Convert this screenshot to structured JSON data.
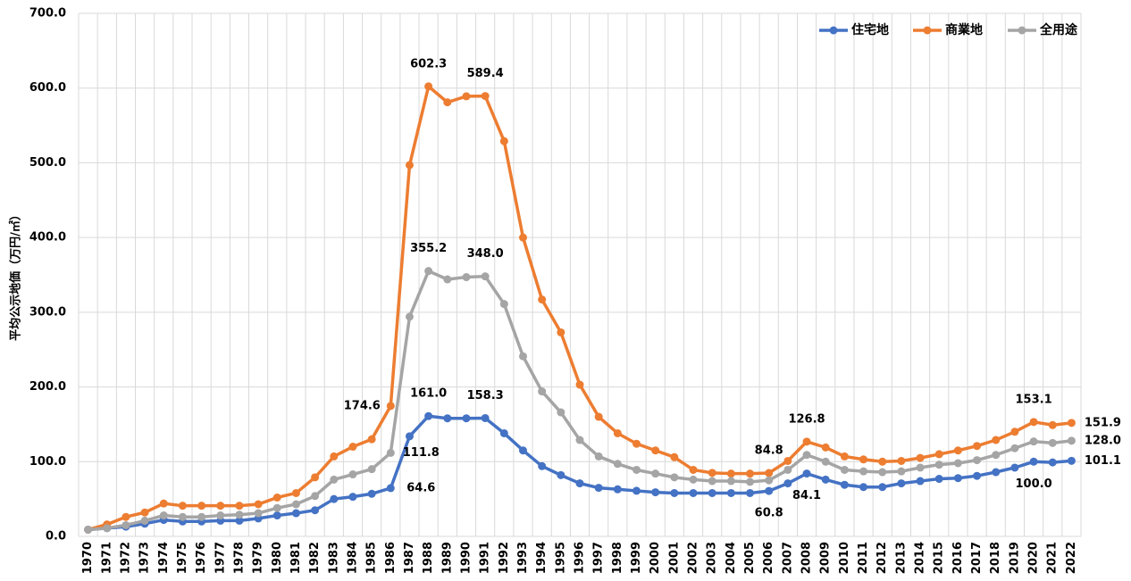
{
  "chart_data": {
    "type": "line",
    "y_label": "平均公示地価（万円/㎡）",
    "categories": [
      "1970",
      "1971",
      "1972",
      "1973",
      "1974",
      "1975",
      "1976",
      "1977",
      "1978",
      "1979",
      "1980",
      "1981",
      "1982",
      "1983",
      "1984",
      "1985",
      "1986",
      "1987",
      "1988",
      "1989",
      "1990",
      "1991",
      "1992",
      "1993",
      "1994",
      "1995",
      "1996",
      "1997",
      "1998",
      "1999",
      "2000",
      "2001",
      "2002",
      "2003",
      "2004",
      "2005",
      "2006",
      "2007",
      "2008",
      "2009",
      "2010",
      "2011",
      "2012",
      "2013",
      "2014",
      "2015",
      "2016",
      "2017",
      "2018",
      "2019",
      "2020",
      "2021",
      "2022"
    ],
    "series": [
      {
        "name": "住宅地",
        "color": "#4472c4",
        "values": [
          9,
          11,
          13,
          17,
          22,
          20,
          20,
          21,
          21,
          24,
          28,
          31,
          35,
          50,
          53,
          57,
          64.6,
          134,
          161,
          158,
          158,
          158.3,
          138,
          115,
          94,
          82,
          71,
          65,
          63,
          61,
          59,
          58,
          58,
          58,
          58,
          58,
          60.8,
          71,
          84.1,
          76,
          69,
          66,
          66,
          71,
          74,
          77,
          78,
          81,
          86,
          92,
          100,
          99,
          101.1
        ],
        "value_labels": [
          null,
          null,
          null,
          null,
          null,
          null,
          null,
          null,
          null,
          null,
          null,
          null,
          null,
          null,
          null,
          null,
          "64.6",
          null,
          "161.0",
          null,
          null,
          "158.3",
          null,
          null,
          null,
          null,
          null,
          null,
          null,
          null,
          null,
          null,
          null,
          null,
          null,
          null,
          "60.8",
          null,
          "84.1",
          null,
          null,
          null,
          null,
          null,
          null,
          null,
          null,
          null,
          null,
          null,
          "100.0",
          null,
          "101.1"
        ]
      },
      {
        "name": "商業地",
        "color": "#ed7d31",
        "values": [
          9,
          16,
          26,
          32,
          44,
          41,
          41,
          41,
          41,
          43,
          52,
          58,
          79,
          107,
          120,
          130,
          174.6,
          497,
          602.3,
          581,
          589,
          589.4,
          529,
          400,
          317,
          273,
          203,
          160,
          138,
          124,
          115,
          106,
          89,
          85,
          84,
          84,
          84.8,
          101,
          126.8,
          119,
          107,
          103,
          100,
          101,
          105,
          110,
          115,
          121,
          129,
          140,
          153.1,
          149,
          151.9
        ],
        "value_labels": [
          null,
          null,
          null,
          null,
          null,
          null,
          null,
          null,
          null,
          null,
          null,
          null,
          null,
          null,
          null,
          null,
          "174.6",
          null,
          "602.3",
          null,
          null,
          "589.4",
          null,
          null,
          null,
          null,
          null,
          null,
          null,
          null,
          null,
          null,
          null,
          null,
          null,
          null,
          "84.8",
          null,
          "126.8",
          null,
          null,
          null,
          null,
          null,
          null,
          null,
          null,
          null,
          null,
          null,
          "153.1",
          null,
          "151.9"
        ]
      },
      {
        "name": "全用途",
        "color": "#a5a5a5",
        "values": [
          9,
          11,
          15,
          21,
          28,
          26,
          26,
          28,
          29,
          31,
          38,
          43,
          54,
          76,
          83,
          90,
          111.8,
          294,
          355.2,
          344,
          347,
          348,
          311,
          241,
          194,
          166,
          129,
          107,
          97,
          89,
          84,
          79,
          76,
          74,
          74,
          73,
          75,
          89,
          109,
          100,
          89,
          87,
          86,
          87,
          92,
          96,
          98,
          102,
          109,
          118,
          127,
          125,
          128
        ],
        "value_labels": [
          null,
          null,
          null,
          null,
          null,
          null,
          null,
          null,
          null,
          null,
          null,
          null,
          null,
          null,
          null,
          null,
          "111.8",
          null,
          "355.2",
          null,
          null,
          "348.0",
          null,
          null,
          null,
          null,
          null,
          null,
          null,
          null,
          null,
          null,
          null,
          null,
          null,
          null,
          null,
          null,
          null,
          null,
          null,
          null,
          null,
          null,
          null,
          null,
          null,
          null,
          null,
          null,
          null,
          null,
          "128.0"
        ]
      }
    ],
    "ylim": [
      0,
      700
    ],
    "yticks": [
      {
        "value": 0,
        "label": "0.0"
      },
      {
        "value": 100,
        "label": "100.0"
      },
      {
        "value": 200,
        "label": "200.0"
      },
      {
        "value": 300,
        "label": "300.0"
      },
      {
        "value": 400,
        "label": "400.0"
      },
      {
        "value": 500,
        "label": "500.0"
      },
      {
        "value": 600,
        "label": "600.0"
      },
      {
        "value": 700,
        "label": "700.0"
      }
    ],
    "grid": true,
    "legend": "upper right"
  }
}
